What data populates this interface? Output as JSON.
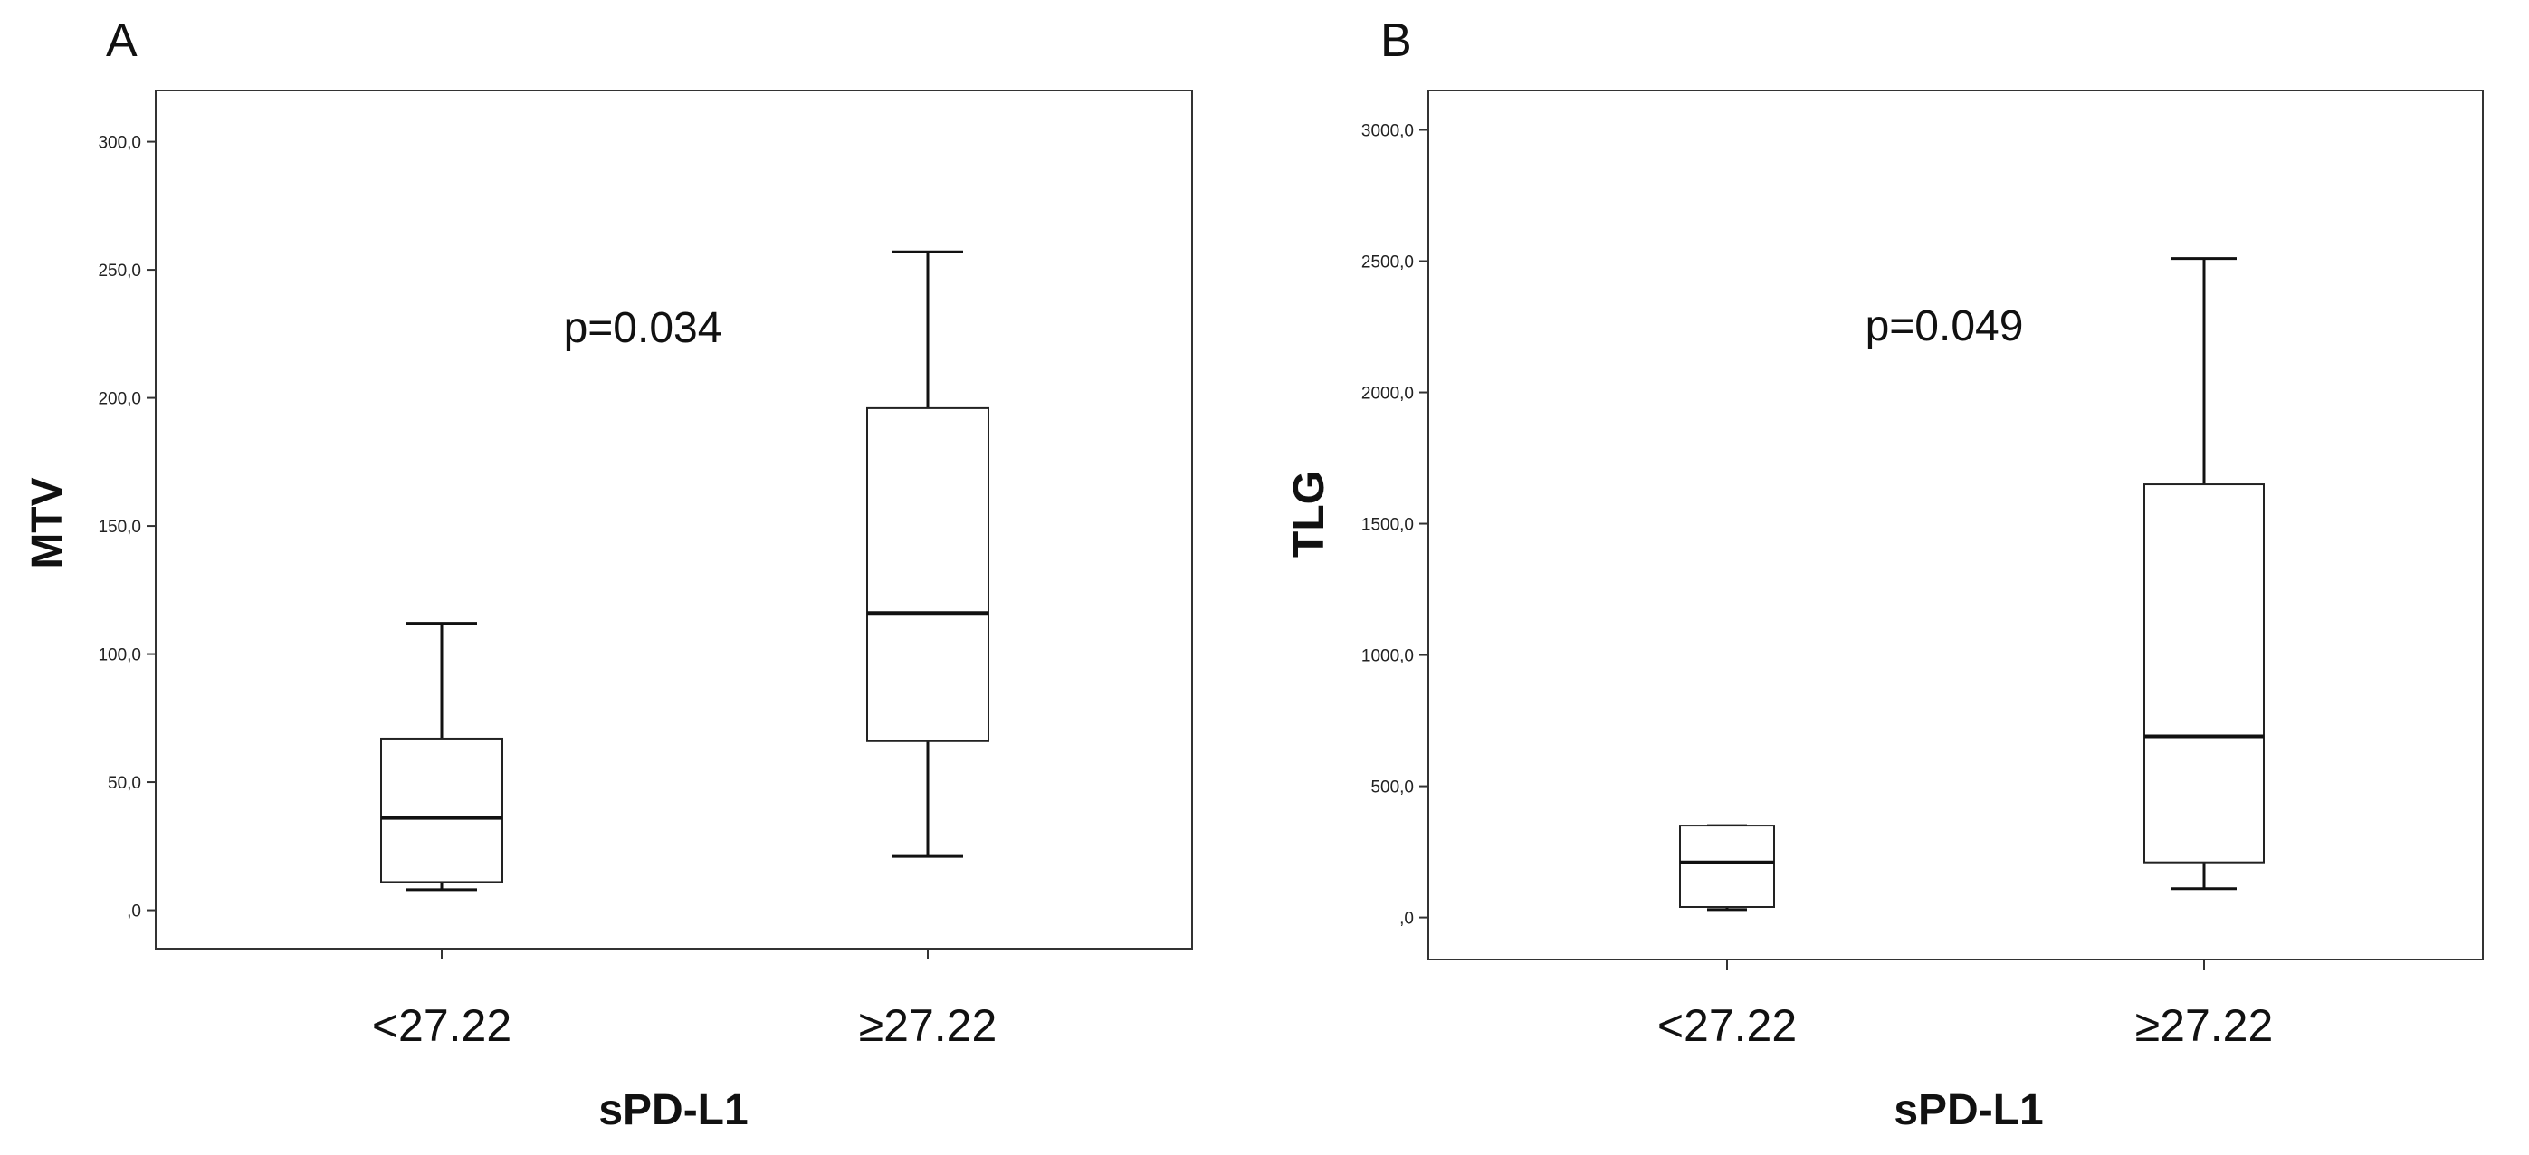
{
  "chart_data": [
    {
      "type": "box",
      "panel_label": "A",
      "ylabel": "MTV",
      "xlabel": "sPD-L1",
      "ylim": [
        -15,
        320
      ],
      "yticks": [
        0,
        50,
        100,
        150,
        200,
        250,
        300
      ],
      "ytick_labels": [
        ",0",
        "50,0",
        "100,0",
        "150,0",
        "200,0",
        "250,0",
        "300,0"
      ],
      "categories": [
        "<27.22",
        "≥27.22"
      ],
      "boxes": [
        {
          "min": 8,
          "q1": 11,
          "median": 36,
          "q3": 67,
          "max": 112
        },
        {
          "min": 21,
          "q1": 66,
          "median": 116,
          "q3": 196,
          "max": 257
        }
      ],
      "annotation": "p=0.034"
    },
    {
      "type": "box",
      "panel_label": "B",
      "ylabel": "TLG",
      "xlabel": "sPD-L1",
      "ylim": [
        -160,
        3150
      ],
      "yticks": [
        0,
        500,
        1000,
        1500,
        2000,
        2500,
        3000
      ],
      "ytick_labels": [
        ",0",
        "500,0",
        "1000,0",
        "1500,0",
        "2000,0",
        "2500,0",
        "3000,0"
      ],
      "categories": [
        "<27.22",
        "≥27.22"
      ],
      "boxes": [
        {
          "min": 30,
          "q1": 40,
          "median": 210,
          "q3": 350,
          "max": 350
        },
        {
          "min": 110,
          "q1": 210,
          "median": 690,
          "q3": 1650,
          "max": 2510
        }
      ],
      "annotation": "p=0.049"
    }
  ]
}
